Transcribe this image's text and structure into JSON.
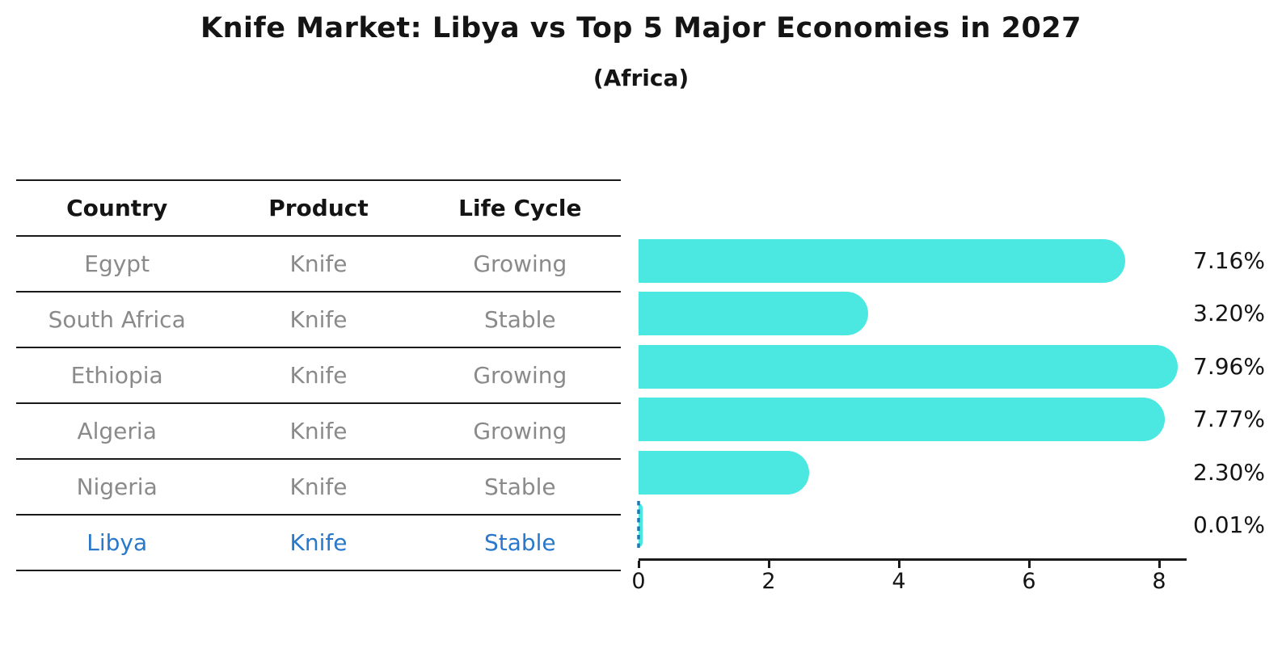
{
  "page": {
    "title": "Knife Market: Libya vs Top 5 Major Economies in 2027",
    "subtitle": "(Africa)"
  },
  "table": {
    "headers": [
      "Country",
      "Product",
      "Life Cycle"
    ],
    "rows": [
      {
        "country": "Egypt",
        "product": "Knife",
        "life_cycle": "Growing",
        "highlight": false
      },
      {
        "country": "South Africa",
        "product": "Knife",
        "life_cycle": "Stable",
        "highlight": false
      },
      {
        "country": "Ethiopia",
        "product": "Knife",
        "life_cycle": "Growing",
        "highlight": false
      },
      {
        "country": "Algeria",
        "product": "Knife",
        "life_cycle": "Growing",
        "highlight": false
      },
      {
        "country": "Nigeria",
        "product": "Knife",
        "life_cycle": "Stable",
        "highlight": false
      },
      {
        "country": "Libya",
        "product": "Knife",
        "life_cycle": "Stable",
        "highlight": true
      }
    ]
  },
  "chart_data": {
    "type": "bar",
    "orientation": "horizontal",
    "title": "Knife Market: Libya vs Top 5 Major Economies in 2027",
    "subtitle": "(Africa)",
    "categories": [
      "Egypt",
      "South Africa",
      "Ethiopia",
      "Algeria",
      "Nigeria",
      "Libya"
    ],
    "values": [
      7.16,
      3.2,
      7.96,
      7.77,
      2.3,
      0.01
    ],
    "value_labels": [
      "7.16%",
      "3.20%",
      "7.96%",
      "7.77%",
      "2.30%",
      "0.01%"
    ],
    "x_ticks": [
      "0",
      "2",
      "4",
      "6",
      "8"
    ],
    "xlim": [
      0,
      8.45
    ],
    "xlabel": "",
    "ylabel": "",
    "grid": false,
    "legend": false,
    "highlight_index": 5,
    "colors": {
      "bar": "#4AE8E1",
      "highlight_text": "#2878CB",
      "marker_line": "#1F77B4",
      "axis": "#1a1a1a",
      "muted_text": "#8a8a8a",
      "text": "#141414"
    }
  }
}
